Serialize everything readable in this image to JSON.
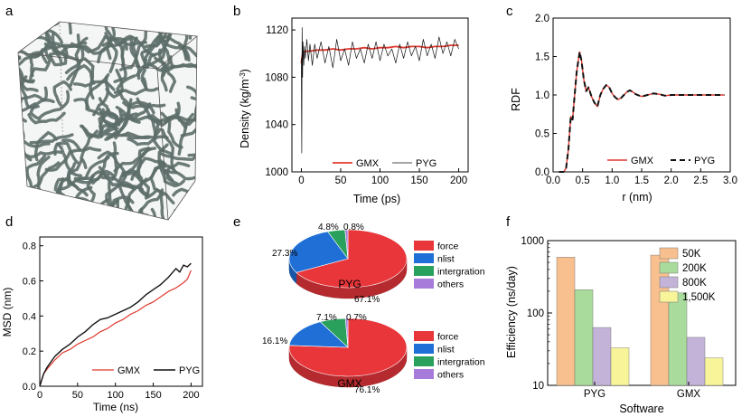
{
  "panels": {
    "a": {
      "label": "a"
    },
    "b": {
      "label": "b"
    },
    "c": {
      "label": "c"
    },
    "d": {
      "label": "d"
    },
    "e": {
      "label": "e"
    },
    "f": {
      "label": "f"
    }
  },
  "colors": {
    "red": "#e0392f",
    "black": "#111111",
    "box_fiber": "#5d6e69"
  },
  "chart_data": [
    {
      "panel": "b",
      "type": "line",
      "xlabel": "Time (ps)",
      "ylabel": "Density (kg/m⁻³)",
      "ylabel_main": "Density (kg/m",
      "ylabel_sup": "-3",
      "ylabel_end": ")",
      "xlim": [
        -12,
        212
      ],
      "ylim": [
        1000,
        1130
      ],
      "xticks": [
        "0",
        "50",
        "100",
        "150",
        "200"
      ],
      "xtick_values": [
        0,
        50,
        100,
        150,
        200
      ],
      "yticks": [
        "1000",
        "1040",
        "1080",
        "1120"
      ],
      "ytick_values": [
        1000,
        1040,
        1080,
        1120
      ],
      "legend": [
        "GMX",
        "PYG"
      ],
      "series": [
        {
          "name": "GMX",
          "color": "#e0392f",
          "x": [
            0,
            1,
            2,
            5,
            10,
            20,
            30,
            40,
            50,
            60,
            70,
            80,
            90,
            100,
            110,
            120,
            130,
            140,
            150,
            160,
            170,
            180,
            190,
            200
          ],
          "y": [
            1092,
            1098,
            1101,
            1102,
            1102,
            1103,
            1103,
            1104,
            1103,
            1104,
            1104,
            1105,
            1104,
            1105,
            1105,
            1106,
            1105,
            1106,
            1106,
            1105,
            1106,
            1106,
            1107,
            1107
          ]
        },
        {
          "name": "PYG",
          "color": "#111111",
          "x": [
            0,
            0.5,
            1,
            1.5,
            2,
            3,
            4,
            5,
            7,
            9,
            11,
            14,
            17,
            20,
            25,
            30,
            35,
            40,
            45,
            50,
            55,
            60,
            65,
            70,
            75,
            80,
            85,
            90,
            95,
            100,
            105,
            110,
            115,
            120,
            125,
            130,
            135,
            140,
            145,
            150,
            155,
            160,
            165,
            170,
            175,
            180,
            185,
            190,
            195,
            200
          ],
          "y": [
            1096,
            1016,
            1122,
            1080,
            1110,
            1090,
            1106,
            1096,
            1112,
            1094,
            1108,
            1090,
            1108,
            1096,
            1110,
            1092,
            1106,
            1088,
            1112,
            1094,
            1104,
            1090,
            1110,
            1096,
            1104,
            1092,
            1108,
            1096,
            1110,
            1094,
            1108,
            1098,
            1104,
            1092,
            1108,
            1096,
            1110,
            1098,
            1106,
            1094,
            1112,
            1098,
            1108,
            1096,
            1114,
            1100,
            1110,
            1098,
            1112,
            1104
          ]
        }
      ]
    },
    {
      "panel": "c",
      "type": "line",
      "xlabel": "r (nm)",
      "ylabel": "RDF",
      "xlim": [
        0,
        3.0
      ],
      "ylim": [
        0,
        2.0
      ],
      "xticks": [
        "0.0",
        "0.5",
        "1.0",
        "1.5",
        "2.0",
        "2.5",
        "3.0"
      ],
      "xtick_values": [
        0,
        0.5,
        1,
        1.5,
        2,
        2.5,
        3
      ],
      "yticks": [
        "0.0",
        "0.5",
        "1.0",
        "1.5",
        "2.0"
      ],
      "ytick_values": [
        0,
        0.5,
        1,
        1.5,
        2
      ],
      "legend": [
        "GMX",
        "PYG"
      ],
      "series": [
        {
          "name": "GMX",
          "color": "#e0392f",
          "dash": false,
          "x": [
            0.1,
            0.18,
            0.22,
            0.26,
            0.3,
            0.33,
            0.36,
            0.4,
            0.45,
            0.48,
            0.52,
            0.56,
            0.6,
            0.65,
            0.7,
            0.75,
            0.8,
            0.85,
            0.9,
            0.95,
            1.0,
            1.05,
            1.1,
            1.15,
            1.2,
            1.25,
            1.3,
            1.35,
            1.4,
            1.5,
            1.6,
            1.7,
            1.8,
            1.9,
            2.0,
            2.2,
            2.4,
            2.6,
            2.8,
            2.9
          ],
          "y": [
            0,
            0,
            0.05,
            0.3,
            0.72,
            0.68,
            0.95,
            1.3,
            1.56,
            1.45,
            1.2,
            1.05,
            1.1,
            0.98,
            0.9,
            0.85,
            1.0,
            1.08,
            1.13,
            1.1,
            1.02,
            0.97,
            0.94,
            0.96,
            1.0,
            1.04,
            1.06,
            1.04,
            1.01,
            0.98,
            1.0,
            1.02,
            1.01,
            0.99,
            1.0,
            1.0,
            1.0,
            1.0,
            1.0,
            1.0
          ]
        },
        {
          "name": "PYG",
          "color": "#111111",
          "dash": true,
          "x": [
            0.1,
            0.18,
            0.22,
            0.26,
            0.3,
            0.33,
            0.36,
            0.4,
            0.45,
            0.48,
            0.52,
            0.56,
            0.6,
            0.65,
            0.7,
            0.75,
            0.8,
            0.85,
            0.9,
            0.95,
            1.0,
            1.05,
            1.1,
            1.15,
            1.2,
            1.25,
            1.3,
            1.35,
            1.4,
            1.5,
            1.6,
            1.7,
            1.8,
            1.9,
            2.0,
            2.2,
            2.4,
            2.6,
            2.8,
            2.9
          ],
          "y": [
            0,
            0,
            0.05,
            0.3,
            0.72,
            0.68,
            0.95,
            1.3,
            1.56,
            1.45,
            1.2,
            1.05,
            1.1,
            0.98,
            0.9,
            0.85,
            1.0,
            1.08,
            1.13,
            1.1,
            1.02,
            0.97,
            0.94,
            0.96,
            1.0,
            1.04,
            1.06,
            1.04,
            1.01,
            0.98,
            1.0,
            1.02,
            1.01,
            0.99,
            1.0,
            1.0,
            1.0,
            1.0,
            1.0,
            1.0
          ]
        }
      ]
    },
    {
      "panel": "d",
      "type": "line",
      "xlabel": "Time (ns)",
      "ylabel": "MSD (nm)",
      "xlim": [
        0,
        215
      ],
      "ylim": [
        0,
        0.85
      ],
      "xticks": [
        "0",
        "50",
        "100",
        "150",
        "200"
      ],
      "xtick_values": [
        0,
        50,
        100,
        150,
        200
      ],
      "yticks": [
        "0.0",
        "0.2",
        "0.4",
        "0.6",
        "0.8"
      ],
      "ytick_values": [
        0,
        0.2,
        0.4,
        0.6,
        0.8
      ],
      "legend": [
        "GMX",
        "PYG"
      ],
      "series": [
        {
          "name": "GMX",
          "color": "#e0392f",
          "x": [
            0,
            5,
            10,
            20,
            30,
            40,
            50,
            60,
            70,
            80,
            90,
            100,
            110,
            120,
            130,
            140,
            150,
            160,
            170,
            180,
            190,
            195,
            200
          ],
          "y": [
            0,
            0.07,
            0.1,
            0.15,
            0.19,
            0.21,
            0.24,
            0.26,
            0.28,
            0.31,
            0.33,
            0.36,
            0.38,
            0.41,
            0.43,
            0.46,
            0.48,
            0.51,
            0.54,
            0.56,
            0.59,
            0.61,
            0.66
          ]
        },
        {
          "name": "PYG",
          "color": "#111111",
          "x": [
            0,
            5,
            10,
            20,
            30,
            40,
            50,
            60,
            70,
            80,
            90,
            100,
            110,
            120,
            130,
            140,
            150,
            160,
            170,
            180,
            185,
            190,
            195,
            200
          ],
          "y": [
            0,
            0.07,
            0.11,
            0.17,
            0.21,
            0.24,
            0.28,
            0.31,
            0.35,
            0.38,
            0.39,
            0.41,
            0.43,
            0.45,
            0.48,
            0.52,
            0.55,
            0.58,
            0.62,
            0.67,
            0.65,
            0.69,
            0.68,
            0.7
          ]
        }
      ]
    },
    {
      "panel": "e",
      "type": "pie",
      "legend": [
        "force",
        "nlist",
        "intergration",
        "others"
      ],
      "colors": [
        "#e8363b",
        "#1f6fd6",
        "#2aa05d",
        "#a77bd9"
      ],
      "pies": [
        {
          "name": "PYG",
          "values": [
            67.1,
            27.3,
            4.8,
            0.8
          ],
          "labels": [
            "67.1%",
            "27.3%",
            "4.8%",
            "0.8%"
          ]
        },
        {
          "name": "GMX",
          "values": [
            76.1,
            16.1,
            7.1,
            0.7
          ],
          "labels": [
            "76.1%",
            "16.1%",
            "7.1%",
            "0.7%"
          ]
        }
      ]
    },
    {
      "panel": "f",
      "type": "bar",
      "xlabel": "Software",
      "ylabel": "Efficiency (ns/day)",
      "yscale": "log",
      "ylim": [
        10,
        1000
      ],
      "yticks": [
        "10",
        "100",
        "1000"
      ],
      "ytick_values": [
        10,
        100,
        1000
      ],
      "categories": [
        "PYG",
        "GMX"
      ],
      "series": [
        {
          "name": "50K",
          "color": "#f9c08f",
          "values": [
            590,
            630
          ]
        },
        {
          "name": "200K",
          "color": "#a9dc9c",
          "values": [
            210,
            190
          ]
        },
        {
          "name": "800K",
          "color": "#c4b3d9",
          "values": [
            63,
            46
          ]
        },
        {
          "name": "1,500K",
          "color": "#f8f49a",
          "values": [
            33,
            24
          ]
        }
      ]
    }
  ]
}
